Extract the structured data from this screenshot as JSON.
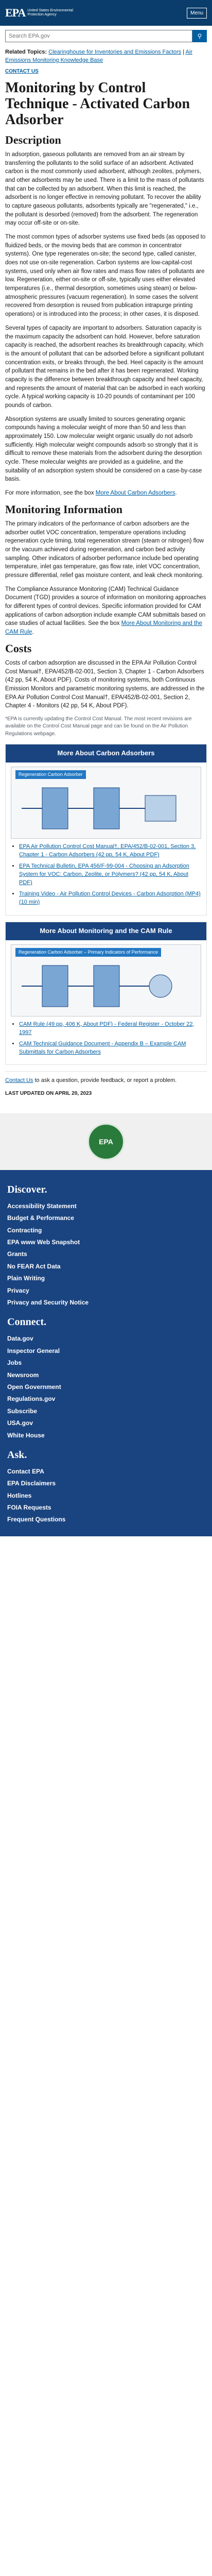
{
  "header": {
    "agency_mark": "EPA",
    "agency_name": "United States Environmental Protection Agency",
    "menu_label": "Menu"
  },
  "search": {
    "placeholder": "Search EPA.gov",
    "button_icon": "search-icon"
  },
  "related": {
    "label": "Related Topics:",
    "link1": "Clearinghouse for Inventories and Emissions Factors",
    "link2": "Air Emissions Monitoring Knowledge Base"
  },
  "contact_us_top": "CONTACT US",
  "page_title": "Monitoring by Control Technique - Activated Carbon Adsorber",
  "sections": {
    "description": {
      "heading": "Description",
      "p1": "In adsorption, gaseous pollutants are removed from an air stream by transferring the pollutants to the solid surface of an adsorbent. Activated carbon is the most commonly used adsorbent, although zeolites, polymers, and other adsorbents may be used. There is a limit to the mass of pollutants that can be collected by an adsorbent. When this limit is reached, the adsorbent is no longer effective in removing pollutant. To recover the ability to capture gaseous pollutants, adsorbents typically are \"regenerated,\" i.e., the pollutant is desorbed (removed) from the adsorbent. The regeneration may occur off-site or on-site.",
      "p2": "The most common types of adsorber systems use fixed beds (as opposed to fluidized beds, or the moving beds that are common in concentrator systems). One type regenerates on-site; the second type, called canister, does not use on-site regeneration. Carbon systems are low-capital-cost systems, used only when air flow rates and mass flow rates of pollutants are low. Regeneration, either on-site or off-site, typically uses either elevated temperatures (i.e., thermal desorption, sometimes using steam) or below-atmospheric pressures (vacuum regeneration). In some cases the solvent recovered from desorption is reused from publication intrapurge printing operations) or is introduced into the process; in other cases, it is disposed.",
      "p3": "Several types of capacity are important to adsorbers. Saturation capacity is the maximum capacity the adsorbent can hold. However, before saturation capacity is reached, the adsorbent reaches its breakthrough capacity, which is the amount of pollutant that can be adsorbed before a significant pollutant concentration exits, or breaks through, the bed. Heel capacity is the amount of pollutant that remains in the bed after it has been regenerated. Working capacity is the difference between breakthrough capacity and heel capacity, and represents the amount of material that can be adsorbed in each working cycle. A typical working capacity is 10-20 pounds of contaminant per 100 pounds of carbon.",
      "p4": "Absorption systems are usually limited to sources generating organic compounds having a molecular weight of more than 50 and less than approximately 150. Low molecular weight organic usually do not adsorb sufficiently. High molecular weight compounds adsorb so strongly that it is difficult to remove these materials from the adsorbent during the desorption cycle. These molecular weights are provided as a guideline, and the suitability of an adsorption system should be considered on a case-by-case basis.",
      "p5_text": "For more information, see the box",
      "p5_link": "More About Carbon Adsorbers"
    },
    "monitoring": {
      "heading": "Monitoring Information",
      "p1": "The primary indicators of the performance of carbon adsorbers are the adsorber outlet VOC concentration, temperature operations including regeneration cycle timing, total regeneration stream (steam or nitrogen) flow or the vacuum achieved during regeneration, and carbon bed activity sampling. Other indicators of adsorber performance include bed operating temperature, inlet gas temperature, gas flow rate, inlet VOC concentration, pressure differential, relief gas moisture content, and leak check monitoring.",
      "p2_text": "The Compliance Assurance Monitoring (CAM) Technical Guidance Document (TGD) provides a source of information on monitoring approaches for different types of control devices. Specific information provided for CAM applications of carbon adsorption include example CAM submittals based on case studies of actual facilities. See the box",
      "p2_link": "More About Monitoring and the CAM Rule",
      "p2_end": "."
    },
    "costs": {
      "heading": "Costs",
      "p1_text": "Costs of carbon adsorption are discussed in the EPA Air Pollution Control Cost Manual†, EPA/452/B-02-001, Section 3, Chapter 1 - Carbon Adsorbers (42 pp, 54 K, About PDF). Costs of monitoring systems, both Continuous Emission Monitors and parametric monitoring systems, are addressed in the EPA Air Pollution Control Cost Manual†, EPA/452/B-02-001, Section 2, Chapter 4 - Monitors (42 pp, 54 K, About PDF).",
      "footnote": "*EPA is currently updating the Control Cost Manual. The most recent revisions are available on the Control Cost Manual page and can be found on the Air Pollution Regulations webpage."
    }
  },
  "box1": {
    "heading": "More About Carbon Adsorbers",
    "diagram_label": "Regeneration Carbon Adsorber",
    "items": [
      "EPA Air Pollution Control Cost Manual†, EPA/452/B-02-001, Section 3, Chapter 1 - Carbon Adsorbers (42 pp, 54 K, About PDF)",
      "EPA Technical Bulletin, EPA 456/F-99-004 - Choosing an Adsorption System for VOC: Carbon, Zeolite, or Polymers? (42 pp, 54 K, About PDF)",
      "Training Video - Air Pollution Control Devices - Carbon Adsorption (MP4) (10 min)"
    ]
  },
  "box2": {
    "heading": "More About Monitoring and the CAM Rule",
    "diagram_label": "Regeneration Carbon Adsorber – Primary Indicators of Performance",
    "items": [
      "CAM Rule (49 pp, 406 K, About PDF) - Federal Register - October 22, 1997",
      "CAM Technical Guidance Document - Appendix B – Example CAM Submittals for Carbon Adsorbers"
    ]
  },
  "contact_line_text": "to ask a question, provide feedback, or report a problem.",
  "contact_line_link": "Contact Us",
  "last_updated": "LAST UPDATED ON APRIL 20, 2023",
  "seal_text": "EPA",
  "footer": {
    "discover_heading": "Discover.",
    "discover": [
      "Accessibility Statement",
      "Budget & Performance",
      "Contracting",
      "EPA www Web Snapshot",
      "Grants",
      "No FEAR Act Data",
      "Plain Writing",
      "Privacy",
      "Privacy and Security Notice"
    ],
    "connect_heading": "Connect.",
    "connect": [
      "Data.gov",
      "Inspector General",
      "Jobs",
      "Newsroom",
      "Open Government",
      "Regulations.gov",
      "Subscribe",
      "USA.gov",
      "White House"
    ],
    "ask_heading": "Ask.",
    "ask": [
      "Contact EPA",
      "EPA Disclaimers",
      "Hotlines",
      "FOIA Requests",
      "Frequent Questions"
    ]
  }
}
